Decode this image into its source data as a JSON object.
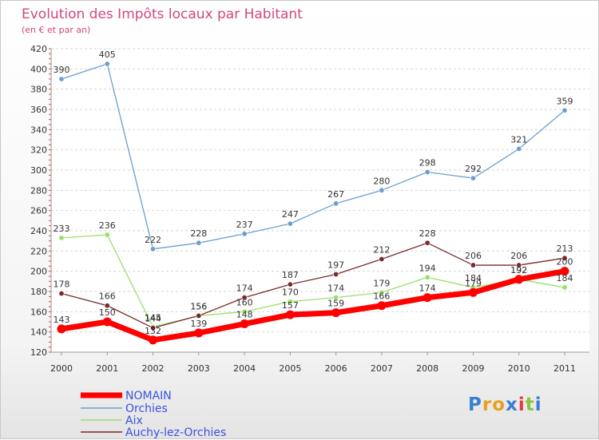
{
  "chart_data": {
    "type": "line",
    "title": "Evolution des Impôts locaux par Habitant",
    "subtitle": "(en € et par an)",
    "x": [
      "2000",
      "2001",
      "2002",
      "2003",
      "2004",
      "2005",
      "2006",
      "2007",
      "2008",
      "2009",
      "2010",
      "2011"
    ],
    "ylim": [
      120,
      420
    ],
    "yticks": [
      120,
      140,
      160,
      180,
      200,
      220,
      240,
      260,
      280,
      300,
      320,
      340,
      360,
      380,
      400,
      420
    ],
    "grid": "horizontal dashed",
    "legend_position": "bottom-left",
    "series": [
      {
        "name": "NOMAIN",
        "color": "#ff0000",
        "values": [
          143,
          150,
          132,
          139,
          148,
          157,
          159,
          166,
          174,
          179,
          192,
          200
        ],
        "labels": [
          "143",
          "150",
          "132",
          "139",
          "148",
          "157",
          "159",
          "166",
          "174",
          "179",
          "192",
          "200"
        ]
      },
      {
        "name": "Orchies",
        "color": "#6c9fcf",
        "values": [
          390,
          405,
          222,
          228,
          237,
          247,
          267,
          280,
          298,
          292,
          321,
          359
        ],
        "labels": [
          "390",
          "405",
          "222",
          "228",
          "237",
          "247",
          "267",
          "280",
          "298",
          "292",
          "321",
          "359"
        ]
      },
      {
        "name": "Aix",
        "color": "#99e06b",
        "values": [
          233,
          236,
          145,
          156,
          160,
          170,
          174,
          179,
          194,
          184,
          192,
          184
        ],
        "labels": [
          "233",
          "236",
          "145",
          "156",
          "160",
          "170",
          "174",
          "179",
          "194",
          "184",
          "192",
          "184"
        ]
      },
      {
        "name": "Auchy-lez-Orchies",
        "color": "#7a2a2a",
        "values": [
          178,
          166,
          144,
          156,
          174,
          187,
          197,
          212,
          228,
          206,
          206,
          213
        ],
        "labels": [
          "178",
          "166",
          "144",
          "156",
          "174",
          "187",
          "197",
          "212",
          "228",
          "206",
          "206",
          "213"
        ]
      }
    ]
  },
  "logo": {
    "text": "Proxiti",
    "letters": [
      "P",
      "r",
      "o",
      "x",
      "i",
      "t",
      "i"
    ],
    "colors": [
      "#3a7fd0",
      "#e8a020",
      "#e8a020",
      "#3a7fd0",
      "#e83a3a",
      "#8ac440",
      "#3a7fd0"
    ]
  }
}
